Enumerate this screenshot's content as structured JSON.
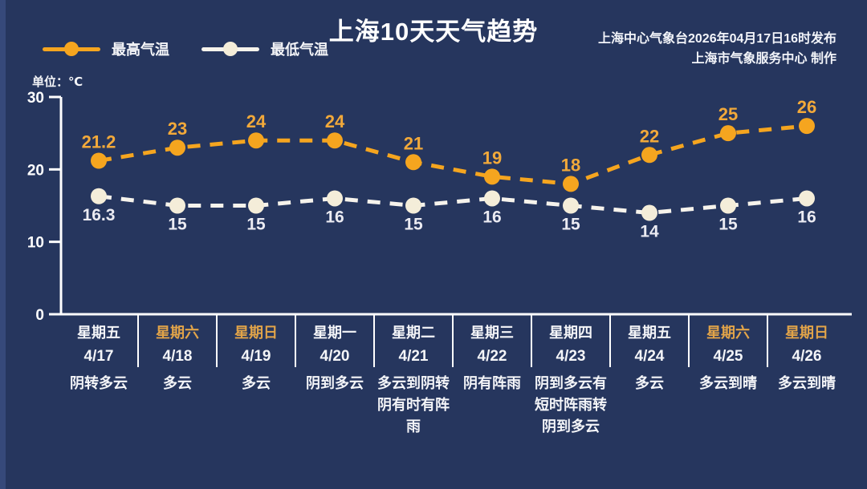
{
  "header": {
    "title": "上海10天天气趋势",
    "issued_line1": "上海中心气象台2026年04月17日16时发布",
    "issued_line2": "上海市气象服务中心 制作"
  },
  "legend": {
    "high": "最高气温",
    "low": "最低气温"
  },
  "unit_label": "单位：℃",
  "chart_data": {
    "type": "line",
    "title": "上海10天天气趋势",
    "ylabel": "单位：℃",
    "ylim": [
      0,
      30
    ],
    "y_ticks": [
      30,
      20,
      10,
      0
    ],
    "grid": false,
    "legend_position": "top-left",
    "categories": [
      "4/17",
      "4/18",
      "4/19",
      "4/20",
      "4/21",
      "4/22",
      "4/23",
      "4/24",
      "4/25",
      "4/26"
    ],
    "series": [
      {
        "name": "最高气温",
        "values": [
          21.2,
          23,
          24,
          24,
          21,
          19,
          18,
          22,
          25,
          26
        ]
      },
      {
        "name": "最低气温",
        "values": [
          16.3,
          15,
          15,
          16,
          15,
          16,
          15,
          14,
          15,
          16
        ]
      }
    ],
    "days": [
      {
        "week": "星期五",
        "date": "4/17",
        "weather_lines": [
          "阴转多云"
        ],
        "weekend": false
      },
      {
        "week": "星期六",
        "date": "4/18",
        "weather_lines": [
          "多云"
        ],
        "weekend": true
      },
      {
        "week": "星期日",
        "date": "4/19",
        "weather_lines": [
          "多云"
        ],
        "weekend": true
      },
      {
        "week": "星期一",
        "date": "4/20",
        "weather_lines": [
          "阴到多云"
        ],
        "weekend": false
      },
      {
        "week": "星期二",
        "date": "4/21",
        "weather_lines": [
          "多云到阴转",
          "阴有时有阵",
          "雨"
        ],
        "weekend": false
      },
      {
        "week": "星期三",
        "date": "4/22",
        "weather_lines": [
          "阴有阵雨"
        ],
        "weekend": false
      },
      {
        "week": "星期四",
        "date": "4/23",
        "weather_lines": [
          "阴到多云有",
          "短时阵雨转",
          "阴到多云"
        ],
        "weekend": false
      },
      {
        "week": "星期五",
        "date": "4/24",
        "weather_lines": [
          "多云"
        ],
        "weekend": false
      },
      {
        "week": "星期六",
        "date": "4/25",
        "weather_lines": [
          "多云到晴"
        ],
        "weekend": true
      },
      {
        "week": "星期日",
        "date": "4/26",
        "weather_lines": [
          "多云到晴"
        ],
        "weekend": true
      }
    ]
  },
  "colors": {
    "background": "#26365e",
    "high": "#f5a51f",
    "high_label": "#f2a93a",
    "low_marker": "#f4edd9",
    "low_line": "#f6f3ec",
    "low_label": "#ebebf2",
    "weekend_text": "#e2a449",
    "axis": "#ffffff"
  }
}
